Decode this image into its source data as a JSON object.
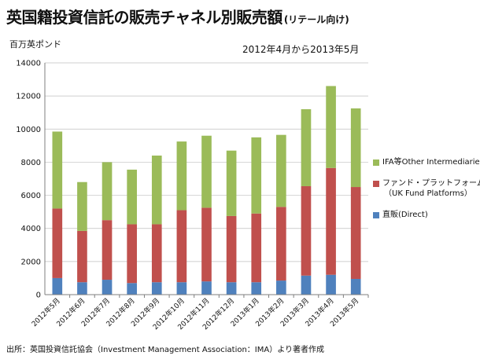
{
  "header": {
    "title": "英国籍投資信託の販売チャネル別販売額",
    "title_suffix": "(リテール向け)",
    "unit_label": "百万英ポンド",
    "period_label": "2012年4月から2013年5月"
  },
  "footer": {
    "source": "出所：英国投資信託協会（Investment Management Association：IMA）より著者作成"
  },
  "legend": {
    "ifa": "IFA等Other Intermediaries",
    "fund_platform_line1": "ファンド・プラットフォーム",
    "fund_platform_line2": "（UK Fund Platforms）",
    "direct": "直販(Direct)"
  },
  "colors": {
    "direct": "#4F81BD",
    "fund_platform": "#C0504D",
    "ifa": "#9BBB59",
    "grid": "#BFBFBF",
    "axis": "#7F7F7F"
  },
  "chart_data": {
    "type": "bar",
    "stacked": true,
    "categories": [
      "2012年5月",
      "2012年6月",
      "2012年7月",
      "2012年8月",
      "2012年9月",
      "2012年10月",
      "2012年11月",
      "2012年12月",
      "2013年1月",
      "2013年2月",
      "2013年3月",
      "2013年4月",
      "2013年5月"
    ],
    "series": [
      {
        "name": "直販(Direct)",
        "values": [
          1000,
          750,
          900,
          700,
          750,
          750,
          800,
          750,
          750,
          850,
          1150,
          1200,
          950
        ]
      },
      {
        "name": "ファンド・プラットフォーム（UK Fund Platforms）",
        "values": [
          4200,
          3100,
          3600,
          3550,
          3500,
          4350,
          4450,
          4000,
          4150,
          4450,
          5400,
          6450,
          5550
        ]
      },
      {
        "name": "IFA等Other Intermediaries",
        "values": [
          4650,
          2950,
          3500,
          3300,
          4150,
          4150,
          4350,
          3950,
          4600,
          4350,
          4650,
          4950,
          4750
        ]
      }
    ],
    "yticks": [
      0,
      2000,
      4000,
      6000,
      8000,
      10000,
      12000,
      14000
    ],
    "ylim": [
      0,
      14000
    ],
    "grid": true,
    "legend_position": "right",
    "xlabel": "",
    "ylabel": "百万英ポンド",
    "title": "英国籍投資信託の販売チャネル別販売額(リテール向け)"
  }
}
